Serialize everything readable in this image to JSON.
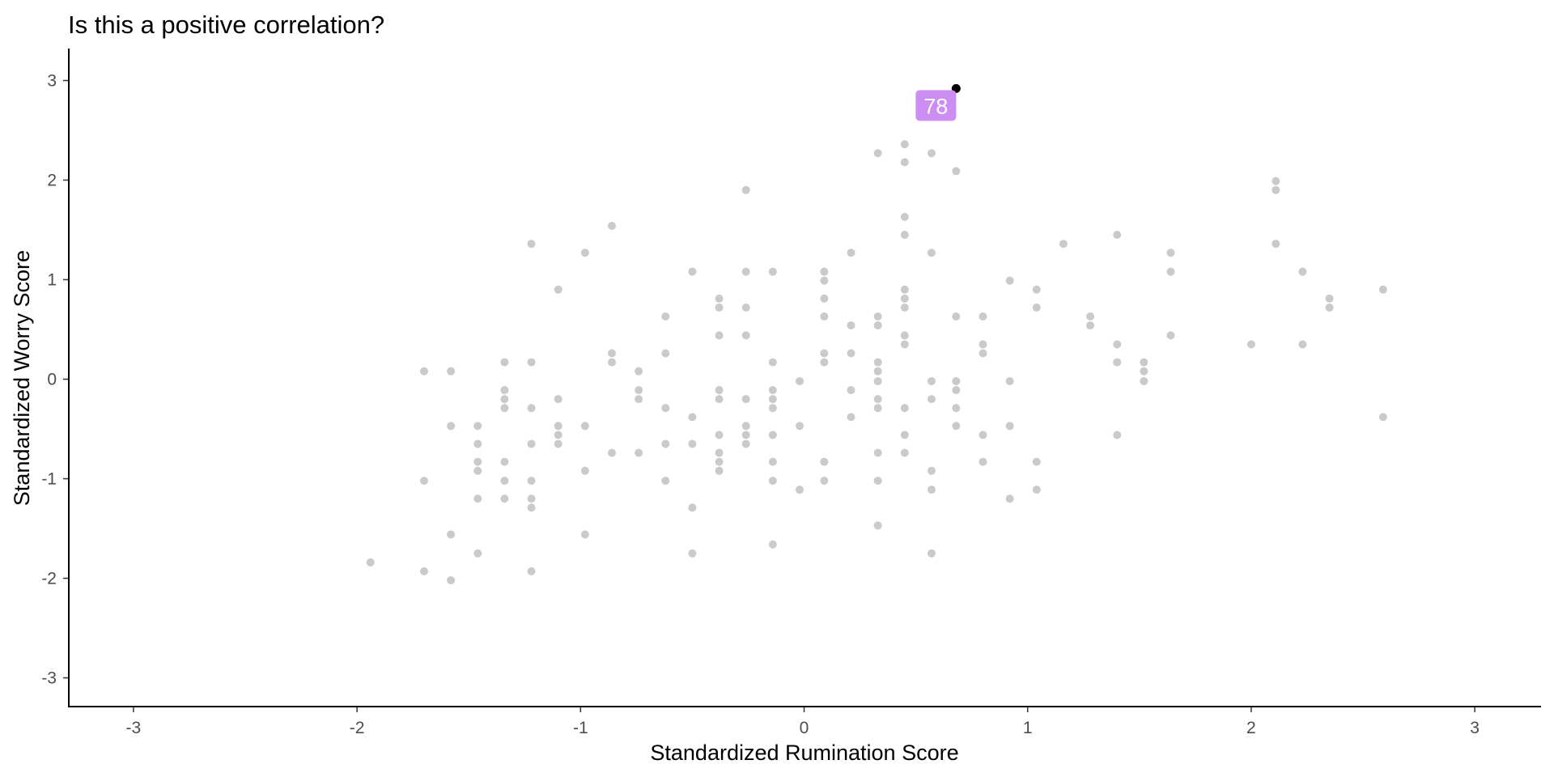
{
  "chart_data": {
    "type": "scatter",
    "title": "Is this a positive correlation?",
    "xlabel": "Standardized Rumination Score",
    "ylabel": "Standardized Worry Score",
    "xlim": [
      -3.3,
      3.3
    ],
    "ylim": [
      -3.3,
      3.3
    ],
    "x_ticks": [
      -3,
      -2,
      -1,
      0,
      1,
      2,
      3
    ],
    "y_ticks": [
      -3,
      -2,
      -1,
      0,
      1,
      2,
      3
    ],
    "grid": false,
    "colors": {
      "points": "#b3b3b3",
      "highlight_point": "#000000",
      "label_fill": "#cc8ef2",
      "label_text": "#ffffff"
    },
    "highlight": {
      "label": "78",
      "x": 0.68,
      "y": 2.92
    },
    "points": [
      [
        -1.94,
        -1.84
      ],
      [
        -1.7,
        0.08
      ],
      [
        -1.7,
        -1.02
      ],
      [
        -1.7,
        -1.93
      ],
      [
        -1.58,
        0.08
      ],
      [
        -1.58,
        -0.47
      ],
      [
        -1.58,
        -1.56
      ],
      [
        -1.58,
        -2.02
      ],
      [
        -1.46,
        -0.47
      ],
      [
        -1.46,
        -0.65
      ],
      [
        -1.46,
        -0.83
      ],
      [
        -1.46,
        -0.92
      ],
      [
        -1.46,
        -1.2
      ],
      [
        -1.46,
        -1.75
      ],
      [
        -1.34,
        0.17
      ],
      [
        -1.34,
        -0.11
      ],
      [
        -1.34,
        -0.2
      ],
      [
        -1.34,
        -0.29
      ],
      [
        -1.34,
        -0.83
      ],
      [
        -1.34,
        -1.02
      ],
      [
        -1.34,
        -1.2
      ],
      [
        -1.22,
        1.36
      ],
      [
        -1.22,
        0.17
      ],
      [
        -1.22,
        -0.29
      ],
      [
        -1.22,
        -0.65
      ],
      [
        -1.22,
        -1.02
      ],
      [
        -1.22,
        -1.2
      ],
      [
        -1.22,
        -1.29
      ],
      [
        -1.22,
        -1.93
      ],
      [
        -1.1,
        0.9
      ],
      [
        -1.1,
        -0.2
      ],
      [
        -1.1,
        -0.47
      ],
      [
        -1.1,
        -0.56
      ],
      [
        -1.1,
        -0.65
      ],
      [
        -0.98,
        1.27
      ],
      [
        -0.98,
        -0.47
      ],
      [
        -0.98,
        -0.92
      ],
      [
        -0.98,
        -1.56
      ],
      [
        -0.86,
        1.54
      ],
      [
        -0.86,
        0.26
      ],
      [
        -0.86,
        0.17
      ],
      [
        -0.86,
        -0.74
      ],
      [
        -0.74,
        0.08
      ],
      [
        -0.74,
        -0.11
      ],
      [
        -0.74,
        -0.2
      ],
      [
        -0.74,
        -0.74
      ],
      [
        -0.62,
        0.63
      ],
      [
        -0.62,
        0.26
      ],
      [
        -0.62,
        -0.29
      ],
      [
        -0.62,
        -0.65
      ],
      [
        -0.62,
        -1.02
      ],
      [
        -0.5,
        1.08
      ],
      [
        -0.5,
        -0.38
      ],
      [
        -0.5,
        -0.65
      ],
      [
        -0.5,
        -1.29
      ],
      [
        -0.5,
        -1.75
      ],
      [
        -0.38,
        0.81
      ],
      [
        -0.38,
        0.72
      ],
      [
        -0.38,
        0.44
      ],
      [
        -0.38,
        -0.11
      ],
      [
        -0.38,
        -0.2
      ],
      [
        -0.38,
        -0.56
      ],
      [
        -0.38,
        -0.74
      ],
      [
        -0.38,
        -0.83
      ],
      [
        -0.38,
        -0.92
      ],
      [
        -0.26,
        1.9
      ],
      [
        -0.26,
        1.08
      ],
      [
        -0.26,
        0.72
      ],
      [
        -0.26,
        0.44
      ],
      [
        -0.26,
        -0.2
      ],
      [
        -0.26,
        -0.47
      ],
      [
        -0.26,
        -0.56
      ],
      [
        -0.26,
        -0.65
      ],
      [
        -0.14,
        1.08
      ],
      [
        -0.14,
        0.17
      ],
      [
        -0.14,
        -0.11
      ],
      [
        -0.14,
        -0.2
      ],
      [
        -0.14,
        -0.29
      ],
      [
        -0.14,
        -0.56
      ],
      [
        -0.14,
        -0.83
      ],
      [
        -0.14,
        -1.02
      ],
      [
        -0.14,
        -1.66
      ],
      [
        -0.02,
        -0.02
      ],
      [
        -0.02,
        -0.47
      ],
      [
        -0.02,
        -1.11
      ],
      [
        0.09,
        1.08
      ],
      [
        0.09,
        0.99
      ],
      [
        0.09,
        0.81
      ],
      [
        0.09,
        0.63
      ],
      [
        0.09,
        0.26
      ],
      [
        0.09,
        0.17
      ],
      [
        0.09,
        -0.83
      ],
      [
        0.09,
        -1.02
      ],
      [
        0.21,
        1.27
      ],
      [
        0.21,
        0.54
      ],
      [
        0.21,
        0.26
      ],
      [
        0.21,
        -0.11
      ],
      [
        0.21,
        -0.38
      ],
      [
        0.33,
        2.27
      ],
      [
        0.33,
        0.63
      ],
      [
        0.33,
        0.54
      ],
      [
        0.33,
        0.17
      ],
      [
        0.33,
        0.08
      ],
      [
        0.33,
        -0.02
      ],
      [
        0.33,
        -0.2
      ],
      [
        0.33,
        -0.29
      ],
      [
        0.33,
        -0.74
      ],
      [
        0.33,
        -1.02
      ],
      [
        0.33,
        -1.47
      ],
      [
        0.45,
        2.36
      ],
      [
        0.45,
        2.18
      ],
      [
        0.45,
        1.63
      ],
      [
        0.45,
        1.45
      ],
      [
        0.45,
        0.9
      ],
      [
        0.45,
        0.81
      ],
      [
        0.45,
        0.72
      ],
      [
        0.45,
        0.44
      ],
      [
        0.45,
        0.35
      ],
      [
        0.45,
        -0.29
      ],
      [
        0.45,
        -0.56
      ],
      [
        0.45,
        -0.74
      ],
      [
        0.57,
        2.27
      ],
      [
        0.57,
        1.27
      ],
      [
        0.57,
        -0.02
      ],
      [
        0.57,
        -0.2
      ],
      [
        0.57,
        -0.92
      ],
      [
        0.57,
        -1.11
      ],
      [
        0.57,
        -1.75
      ],
      [
        0.68,
        2.09
      ],
      [
        0.68,
        0.63
      ],
      [
        0.68,
        -0.02
      ],
      [
        0.68,
        -0.11
      ],
      [
        0.68,
        -0.29
      ],
      [
        0.68,
        -0.47
      ],
      [
        0.8,
        0.63
      ],
      [
        0.8,
        0.35
      ],
      [
        0.8,
        0.26
      ],
      [
        0.8,
        -0.56
      ],
      [
        0.8,
        -0.83
      ],
      [
        0.92,
        0.99
      ],
      [
        0.92,
        -0.02
      ],
      [
        0.92,
        -0.47
      ],
      [
        0.92,
        -1.2
      ],
      [
        1.04,
        0.9
      ],
      [
        1.04,
        0.72
      ],
      [
        1.04,
        -0.83
      ],
      [
        1.04,
        -1.11
      ],
      [
        1.16,
        1.36
      ],
      [
        1.28,
        0.63
      ],
      [
        1.28,
        0.54
      ],
      [
        1.4,
        1.45
      ],
      [
        1.4,
        0.35
      ],
      [
        1.4,
        0.17
      ],
      [
        1.4,
        -0.56
      ],
      [
        1.52,
        0.17
      ],
      [
        1.52,
        0.08
      ],
      [
        1.52,
        -0.02
      ],
      [
        1.64,
        1.27
      ],
      [
        1.64,
        1.08
      ],
      [
        1.64,
        0.44
      ],
      [
        2.0,
        0.35
      ],
      [
        2.11,
        1.99
      ],
      [
        2.11,
        1.9
      ],
      [
        2.11,
        1.36
      ],
      [
        2.23,
        1.08
      ],
      [
        2.23,
        0.35
      ],
      [
        2.35,
        0.81
      ],
      [
        2.35,
        0.72
      ],
      [
        2.59,
        0.9
      ],
      [
        2.59,
        -0.38
      ]
    ]
  }
}
